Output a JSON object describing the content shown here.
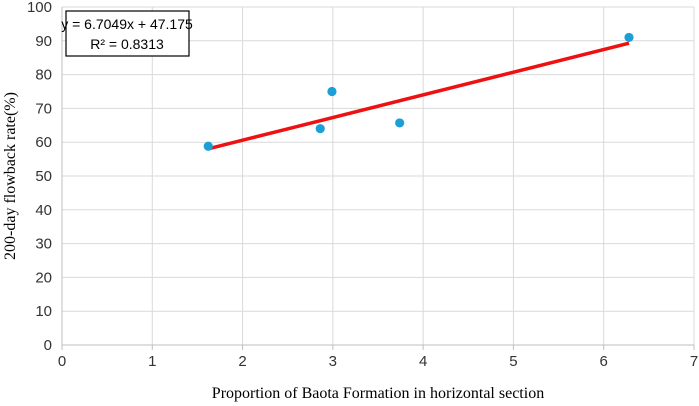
{
  "chart_data": {
    "type": "scatter",
    "xlabel": "Proportion of Baota Formation in horizontal section",
    "ylabel": "200-day flowback rate(%)",
    "xlim": [
      0,
      7
    ],
    "ylim": [
      0,
      100
    ],
    "x_ticks": [
      "0",
      "1",
      "2",
      "3",
      "4",
      "5",
      "6",
      "7"
    ],
    "y_ticks": [
      "0",
      "10",
      "20",
      "30",
      "40",
      "50",
      "60",
      "70",
      "80",
      "90",
      "100"
    ],
    "grid": true,
    "points": [
      {
        "x": 1.62,
        "y": 58.8
      },
      {
        "x": 2.86,
        "y": 64.0
      },
      {
        "x": 2.99,
        "y": 75.0
      },
      {
        "x": 3.74,
        "y": 65.7
      },
      {
        "x": 6.28,
        "y": 91.0
      }
    ],
    "trendline": {
      "slope": 6.7049,
      "intercept": 47.175,
      "x_range": [
        1.62,
        6.28
      ],
      "equation": "y = 6.7049x + 47.175",
      "r2": "R² = 0.8313"
    },
    "colors": {
      "points": "#1a9fd6",
      "trendline": "#ee1111",
      "grid": "#d9d9d9",
      "axis": "#bfbfbf"
    }
  }
}
